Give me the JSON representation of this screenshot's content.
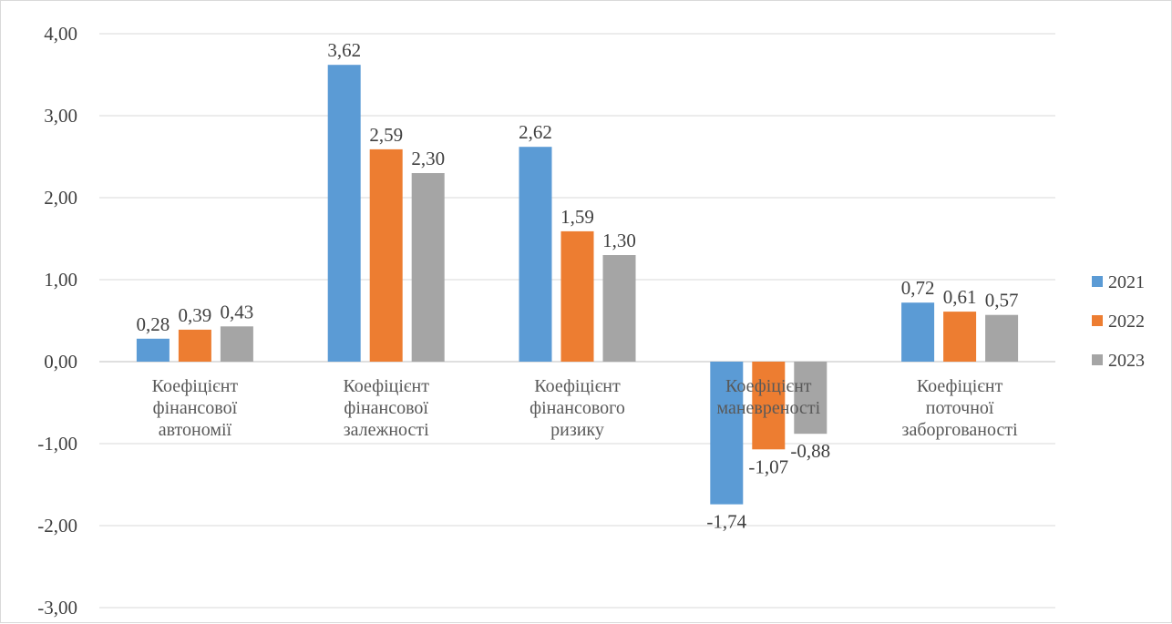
{
  "chart_data": {
    "type": "bar",
    "categories": [
      [
        "Коефіцієнт",
        "фінансової",
        "автономії"
      ],
      [
        "Коефіцієнт",
        "фінансової",
        "залежності"
      ],
      [
        "Коефіцієнт",
        "фінансового",
        "ризику"
      ],
      [
        "Коефіцієнт",
        "маневреності"
      ],
      [
        "Коефіцієнт",
        "поточної",
        "заборгованості"
      ]
    ],
    "series": [
      {
        "name": "2021",
        "color": "#5b9bd5",
        "values": [
          0.28,
          3.62,
          2.62,
          -1.74,
          0.72
        ],
        "labels": [
          "0,28",
          "3,62",
          "2,62",
          "-1,74",
          "0,72"
        ]
      },
      {
        "name": "2022",
        "color": "#ed7d31",
        "values": [
          0.39,
          2.59,
          1.59,
          -1.07,
          0.61
        ],
        "labels": [
          "0,39",
          "2,59",
          "1,59",
          "-1,07",
          "0,61"
        ]
      },
      {
        "name": "2023",
        "color": "#a5a5a5",
        "values": [
          0.43,
          2.3,
          1.3,
          -0.88,
          0.57
        ],
        "labels": [
          "0,43",
          "2,30",
          "1,30",
          "-0,88",
          "0,57"
        ]
      }
    ],
    "yticks": [
      4,
      3,
      2,
      1,
      0,
      -1,
      -2,
      -3
    ],
    "ytick_labels": [
      "4,00",
      "3,00",
      "2,00",
      "1,00",
      "0,00",
      "-1,00",
      "-2,00",
      "-3,00"
    ],
    "ylim": [
      -3,
      4
    ],
    "grid": true,
    "legend_position": "right",
    "title": "",
    "xlabel": "",
    "ylabel": ""
  }
}
